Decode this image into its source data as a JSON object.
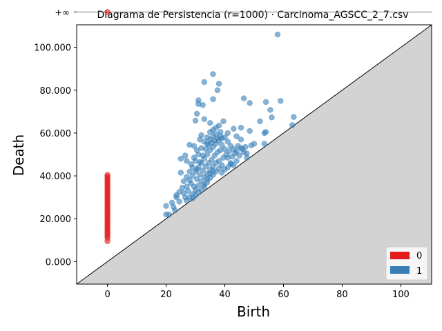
{
  "chart_data": {
    "type": "scatter",
    "title": "Diagrama de Persistencia (r=1000) · Carcinoma_AGSCC_2_7.csv",
    "xlabel": "Birth",
    "ylabel": "Death",
    "xlim": [
      -10.5,
      110.5
    ],
    "ylim": [
      -10500,
      110500
    ],
    "x_ticks": [
      0,
      20,
      40,
      60,
      80,
      100
    ],
    "x_tick_labels": [
      "0",
      "20",
      "40",
      "60",
      "80",
      "100"
    ],
    "y_ticks": [
      0,
      20000,
      40000,
      60000,
      80000,
      100000
    ],
    "y_tick_labels": [
      "0.000",
      "20.000",
      "40.000",
      "60.000",
      "80.000",
      "100.000"
    ],
    "infinity_label": "+∞",
    "infinity_y": 116500,
    "diagonal": true,
    "grid": false,
    "legend_position": "lower right",
    "legend": [
      {
        "label": "0",
        "color": "#e41a1c"
      },
      {
        "label": "1",
        "color": "#377eb8"
      }
    ],
    "series": [
      {
        "name": "0",
        "color": "#e41a1c",
        "points": [
          [
            0,
            116500
          ],
          [
            0,
            40500
          ],
          [
            0,
            39800
          ],
          [
            0,
            39000
          ],
          [
            0,
            38200
          ],
          [
            0,
            37400
          ],
          [
            0,
            36600
          ],
          [
            0,
            35800
          ],
          [
            0,
            35000
          ],
          [
            0,
            34200
          ],
          [
            0,
            33400
          ],
          [
            0,
            32600
          ],
          [
            0,
            31800
          ],
          [
            0,
            31000
          ],
          [
            0,
            30200
          ],
          [
            0,
            29400
          ],
          [
            0,
            28600
          ],
          [
            0,
            27800
          ],
          [
            0,
            27000
          ],
          [
            0,
            26200
          ],
          [
            0,
            25400
          ],
          [
            0,
            24600
          ],
          [
            0,
            23800
          ],
          [
            0,
            23000
          ],
          [
            0,
            22200
          ],
          [
            0,
            21400
          ],
          [
            0,
            20600
          ],
          [
            0,
            19800
          ],
          [
            0,
            19000
          ],
          [
            0,
            18200
          ],
          [
            0,
            17400
          ],
          [
            0,
            16600
          ],
          [
            0,
            15800
          ],
          [
            0,
            15000
          ],
          [
            0,
            14200
          ],
          [
            0,
            13400
          ],
          [
            0,
            12600
          ],
          [
            0,
            11800
          ],
          [
            0,
            11000
          ],
          [
            0,
            9500
          ]
        ]
      },
      {
        "name": "1",
        "color": "#377eb8",
        "points": [
          [
            58,
            106000
          ],
          [
            36,
            87500
          ],
          [
            33,
            83800
          ],
          [
            38,
            83000
          ],
          [
            37.5,
            80000
          ],
          [
            36,
            75800
          ],
          [
            31,
            75300
          ],
          [
            31,
            73600
          ],
          [
            32.5,
            73100
          ],
          [
            46.5,
            76200
          ],
          [
            48.5,
            74000
          ],
          [
            54,
            74500
          ],
          [
            59,
            75000
          ],
          [
            55.5,
            70800
          ],
          [
            56,
            67300
          ],
          [
            52,
            65500
          ],
          [
            63.5,
            67500
          ],
          [
            63,
            63700
          ],
          [
            54,
            60500
          ],
          [
            53.5,
            60000
          ],
          [
            48.5,
            61000
          ],
          [
            45.5,
            62500
          ],
          [
            43,
            62000
          ],
          [
            39.5,
            65500
          ],
          [
            33,
            66500
          ],
          [
            30.5,
            69000
          ],
          [
            30,
            65800
          ],
          [
            35,
            64700
          ],
          [
            38,
            63500
          ],
          [
            41,
            60000
          ],
          [
            44,
            58500
          ],
          [
            45.5,
            57000
          ],
          [
            50,
            55000
          ],
          [
            53.5,
            55000
          ],
          [
            49,
            54200
          ],
          [
            47,
            53500
          ],
          [
            47.5,
            50500
          ],
          [
            47.5,
            48500
          ],
          [
            44,
            47000
          ],
          [
            43,
            45000
          ],
          [
            28,
            54500
          ],
          [
            29.5,
            54000
          ],
          [
            26.5,
            49500
          ],
          [
            25,
            48000
          ],
          [
            27,
            47000
          ],
          [
            25,
            41500
          ],
          [
            23.5,
            30000
          ],
          [
            22,
            27500
          ],
          [
            20,
            26000
          ],
          [
            20,
            22000
          ],
          [
            21,
            22000
          ],
          [
            22.5,
            25500
          ],
          [
            23,
            24000
          ],
          [
            24.5,
            28000
          ],
          [
            26,
            32000
          ],
          [
            26.5,
            30000
          ],
          [
            27,
            35000
          ],
          [
            27.5,
            33000
          ],
          [
            28,
            38000
          ],
          [
            28.5,
            36500
          ],
          [
            29,
            40000
          ],
          [
            29.5,
            35000
          ],
          [
            30,
            42000
          ],
          [
            30.5,
            38500
          ],
          [
            31,
            44000
          ],
          [
            31.5,
            40500
          ],
          [
            32,
            46000
          ],
          [
            32.5,
            42500
          ],
          [
            33,
            48000
          ],
          [
            33.5,
            44500
          ],
          [
            34,
            50000
          ],
          [
            34.5,
            46000
          ],
          [
            35,
            52000
          ],
          [
            35.5,
            47500
          ],
          [
            36,
            53500
          ],
          [
            36.5,
            49500
          ],
          [
            37,
            55000
          ],
          [
            37.5,
            51000
          ],
          [
            38,
            56500
          ],
          [
            38.5,
            52000
          ],
          [
            39,
            57500
          ],
          [
            39.5,
            48500
          ],
          [
            40,
            58000
          ],
          [
            40.5,
            50000
          ],
          [
            41,
            56000
          ],
          [
            41.5,
            51500
          ],
          [
            42,
            54000
          ],
          [
            42.5,
            49000
          ],
          [
            43,
            52500
          ],
          [
            43.5,
            50500
          ],
          [
            44,
            51500
          ],
          [
            45,
            49500
          ],
          [
            46,
            52500
          ],
          [
            29,
            31500
          ],
          [
            30,
            33500
          ],
          [
            31,
            35500
          ],
          [
            32,
            37500
          ],
          [
            33,
            39500
          ],
          [
            34,
            41000
          ],
          [
            35,
            43000
          ],
          [
            36,
            44500
          ],
          [
            37,
            46000
          ],
          [
            38,
            47000
          ],
          [
            39,
            45000
          ],
          [
            40,
            43000
          ],
          [
            41,
            44000
          ],
          [
            42,
            46000
          ],
          [
            30,
            47000
          ],
          [
            31,
            50000
          ],
          [
            32,
            53000
          ],
          [
            33,
            56000
          ],
          [
            34,
            58000
          ],
          [
            35,
            60500
          ],
          [
            36,
            61500
          ],
          [
            37,
            62500
          ],
          [
            29,
            44000
          ],
          [
            28,
            42000
          ],
          [
            27,
            39500
          ],
          [
            26,
            37500
          ],
          [
            25.5,
            34500
          ],
          [
            24.5,
            32500
          ],
          [
            23.5,
            31000
          ],
          [
            32,
            59000
          ],
          [
            31.5,
            57000
          ],
          [
            30.5,
            52000
          ],
          [
            34,
            55000
          ],
          [
            35,
            57000
          ],
          [
            36,
            58500
          ],
          [
            37,
            59500
          ],
          [
            38.5,
            60500
          ],
          [
            39,
            54500
          ],
          [
            40,
            52500
          ],
          [
            41,
            48500
          ],
          [
            42,
            45500
          ],
          [
            33,
            35000
          ],
          [
            34,
            37000
          ],
          [
            35,
            39000
          ],
          [
            36,
            40500
          ],
          [
            37,
            42000
          ],
          [
            38,
            43500
          ],
          [
            39,
            41500
          ],
          [
            28.5,
            45500
          ],
          [
            29.5,
            48500
          ],
          [
            30.5,
            43000
          ],
          [
            31.5,
            46500
          ],
          [
            32.5,
            49500
          ],
          [
            33.5,
            52500
          ],
          [
            34.5,
            54500
          ],
          [
            35.5,
            55500
          ],
          [
            36.5,
            56500
          ],
          [
            37.5,
            57500
          ],
          [
            38.5,
            58500
          ],
          [
            44.5,
            54000
          ],
          [
            45.5,
            53000
          ],
          [
            46.5,
            51000
          ],
          [
            27,
            28500
          ],
          [
            28,
            30000
          ],
          [
            29,
            29500
          ],
          [
            30,
            31000
          ],
          [
            31,
            32500
          ],
          [
            32,
            33500
          ],
          [
            33,
            36000
          ],
          [
            34,
            38500
          ],
          [
            35,
            41000
          ],
          [
            36,
            42500
          ]
        ]
      }
    ]
  }
}
